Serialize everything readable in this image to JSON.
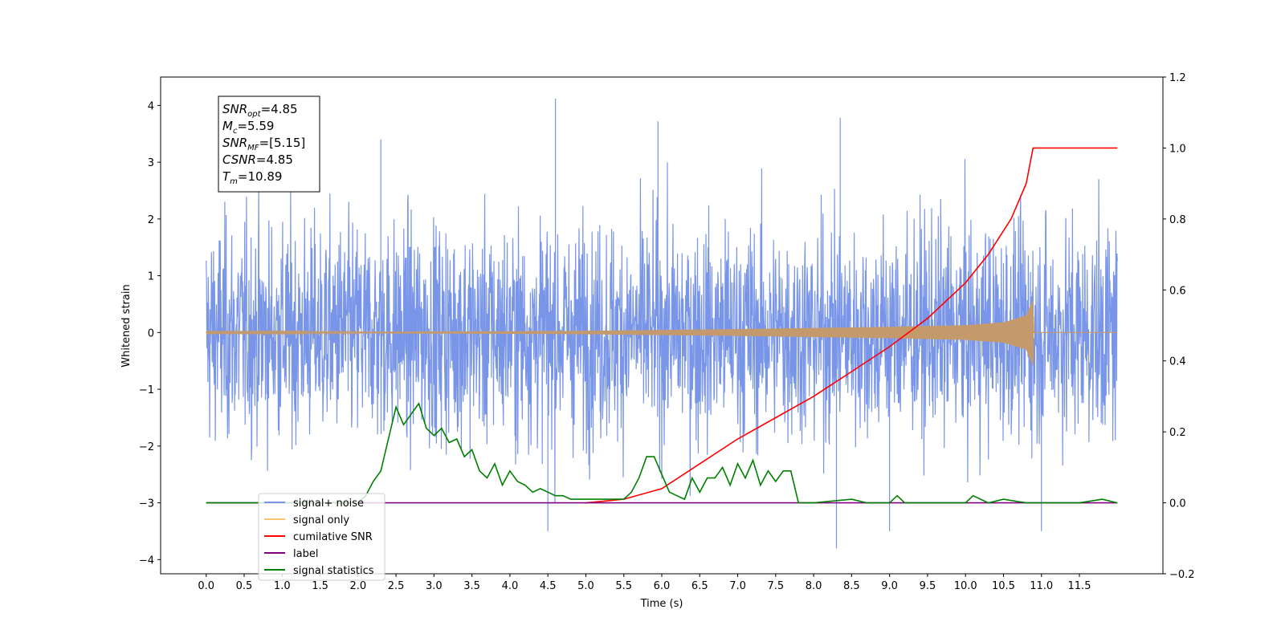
{
  "chart_data": {
    "type": "line",
    "xlabel": "Time (s)",
    "ylabel": "Whitened strain",
    "ylabel_right": "",
    "xlim": [
      -0.6,
      12.6
    ],
    "ylim": [
      -4.25,
      4.5
    ],
    "ylim_right": [
      -0.2,
      1.2
    ],
    "x_ticks": [
      "0.0",
      "0.5",
      "1.0",
      "1.5",
      "2.0",
      "2.5",
      "3.0",
      "3.5",
      "4.0",
      "4.5",
      "5.0",
      "5.5",
      "6.0",
      "6.5",
      "7.0",
      "7.5",
      "8.0",
      "8.5",
      "9.0",
      "9.5",
      "10.0",
      "10.5",
      "11.0",
      "11.5"
    ],
    "y_ticks": [
      "4",
      "3",
      "2",
      "1",
      "0",
      "−1",
      "−2",
      "−3",
      "−4"
    ],
    "y_ticks_right": [
      "1.2",
      "1.0",
      "0.8",
      "0.6",
      "0.4",
      "0.2",
      "0.0",
      "−0.2"
    ],
    "legend_placement": "lower-left",
    "legend": [
      {
        "label": "signal+ noise",
        "color": "#7895e8"
      },
      {
        "label": "signal only",
        "color": "#ffc36e"
      },
      {
        "label": "cumilative SNR",
        "color": "#ff0000"
      },
      {
        "label": "label",
        "color": "#800080"
      },
      {
        "label": "signal statistics",
        "color": "#008000"
      }
    ],
    "annotation": {
      "lines": [
        {
          "base": "SNR",
          "sub": "opt",
          "value": "=4.85"
        },
        {
          "base": "M",
          "sub": "c",
          "value": "=5.59"
        },
        {
          "base": "SNR",
          "sub": "MF",
          "value": "=[5.15]"
        },
        {
          "base": "CSNR",
          "sub": "",
          "value": "=4.85"
        },
        {
          "base": "T",
          "sub": "m",
          "value": "=10.89"
        }
      ]
    },
    "series": [
      {
        "name": "signal+ noise",
        "axis": "left",
        "style": "noise",
        "color": "#7895e8",
        "x_range": [
          0.0,
          12.0
        ],
        "typical_envelope": [
          -2.5,
          2.6
        ],
        "extremes": [
          {
            "x": 4.6,
            "y": 4.12
          },
          {
            "x": 8.3,
            "y": -3.8
          },
          {
            "x": 8.35,
            "y": 3.78
          },
          {
            "x": 5.95,
            "y": 3.72
          },
          {
            "x": 2.3,
            "y": 3.4
          },
          {
            "x": 9.0,
            "y": -3.5
          },
          {
            "x": 11.0,
            "y": -3.5
          },
          {
            "x": 4.5,
            "y": -3.5
          }
        ]
      },
      {
        "name": "signal only",
        "axis": "left",
        "style": "chirp",
        "color": "#c49a6c",
        "x": [
          0,
          1,
          2,
          3,
          4,
          5,
          6,
          7,
          8,
          9,
          10,
          10.5,
          10.8,
          10.89,
          10.9,
          12.0
        ],
        "amplitude": [
          0.01,
          0.012,
          0.014,
          0.018,
          0.022,
          0.03,
          0.045,
          0.06,
          0.08,
          0.1,
          0.13,
          0.18,
          0.3,
          0.58,
          0.0,
          0.0
        ]
      },
      {
        "name": "cumilative SNR",
        "axis": "right",
        "color": "#ff0000",
        "x": [
          5.0,
          5.5,
          6.0,
          6.5,
          7.0,
          7.5,
          8.0,
          8.5,
          9.0,
          9.5,
          10.0,
          10.3,
          10.6,
          10.8,
          10.89,
          12.0
        ],
        "values": [
          0.0,
          0.01,
          0.04,
          0.11,
          0.18,
          0.24,
          0.3,
          0.37,
          0.44,
          0.52,
          0.62,
          0.7,
          0.8,
          0.9,
          1.0,
          1.0
        ]
      },
      {
        "name": "label",
        "axis": "right",
        "color": "#800080",
        "x": [
          0.0,
          12.0
        ],
        "values": [
          0.0,
          0.0
        ]
      },
      {
        "name": "signal statistics",
        "axis": "right",
        "color": "#008000",
        "x": [
          0.0,
          2.0,
          2.1,
          2.2,
          2.3,
          2.4,
          2.5,
          2.6,
          2.7,
          2.8,
          2.9,
          3.0,
          3.1,
          3.2,
          3.3,
          3.4,
          3.5,
          3.6,
          3.7,
          3.8,
          3.9,
          4.0,
          4.1,
          4.2,
          4.3,
          4.4,
          4.5,
          4.6,
          4.7,
          4.8,
          4.9,
          5.0,
          5.2,
          5.4,
          5.5,
          5.6,
          5.7,
          5.8,
          5.9,
          6.0,
          6.1,
          6.2,
          6.3,
          6.4,
          6.5,
          6.6,
          6.7,
          6.8,
          6.9,
          7.0,
          7.1,
          7.2,
          7.3,
          7.4,
          7.5,
          7.6,
          7.7,
          7.8,
          7.9,
          8.0,
          8.5,
          8.7,
          9.0,
          9.1,
          9.2,
          9.5,
          10.0,
          10.1,
          10.3,
          10.5,
          10.8,
          11.0,
          11.5,
          11.8,
          12.0
        ],
        "values": [
          0.0,
          0.0,
          0.02,
          0.06,
          0.09,
          0.18,
          0.27,
          0.22,
          0.25,
          0.28,
          0.21,
          0.19,
          0.21,
          0.17,
          0.18,
          0.13,
          0.15,
          0.09,
          0.07,
          0.11,
          0.05,
          0.09,
          0.06,
          0.05,
          0.03,
          0.04,
          0.03,
          0.02,
          0.02,
          0.01,
          0.01,
          0.01,
          0.01,
          0.01,
          0.01,
          0.03,
          0.07,
          0.13,
          0.13,
          0.08,
          0.03,
          0.02,
          0.01,
          0.07,
          0.03,
          0.07,
          0.07,
          0.1,
          0.05,
          0.11,
          0.07,
          0.12,
          0.05,
          0.09,
          0.06,
          0.09,
          0.09,
          0.0,
          0.0,
          0.0,
          0.01,
          0.0,
          0.0,
          0.02,
          0.0,
          0.0,
          0.0,
          0.02,
          0.0,
          0.01,
          0.0,
          0.0,
          0.0,
          0.01,
          0.0
        ]
      }
    ]
  }
}
